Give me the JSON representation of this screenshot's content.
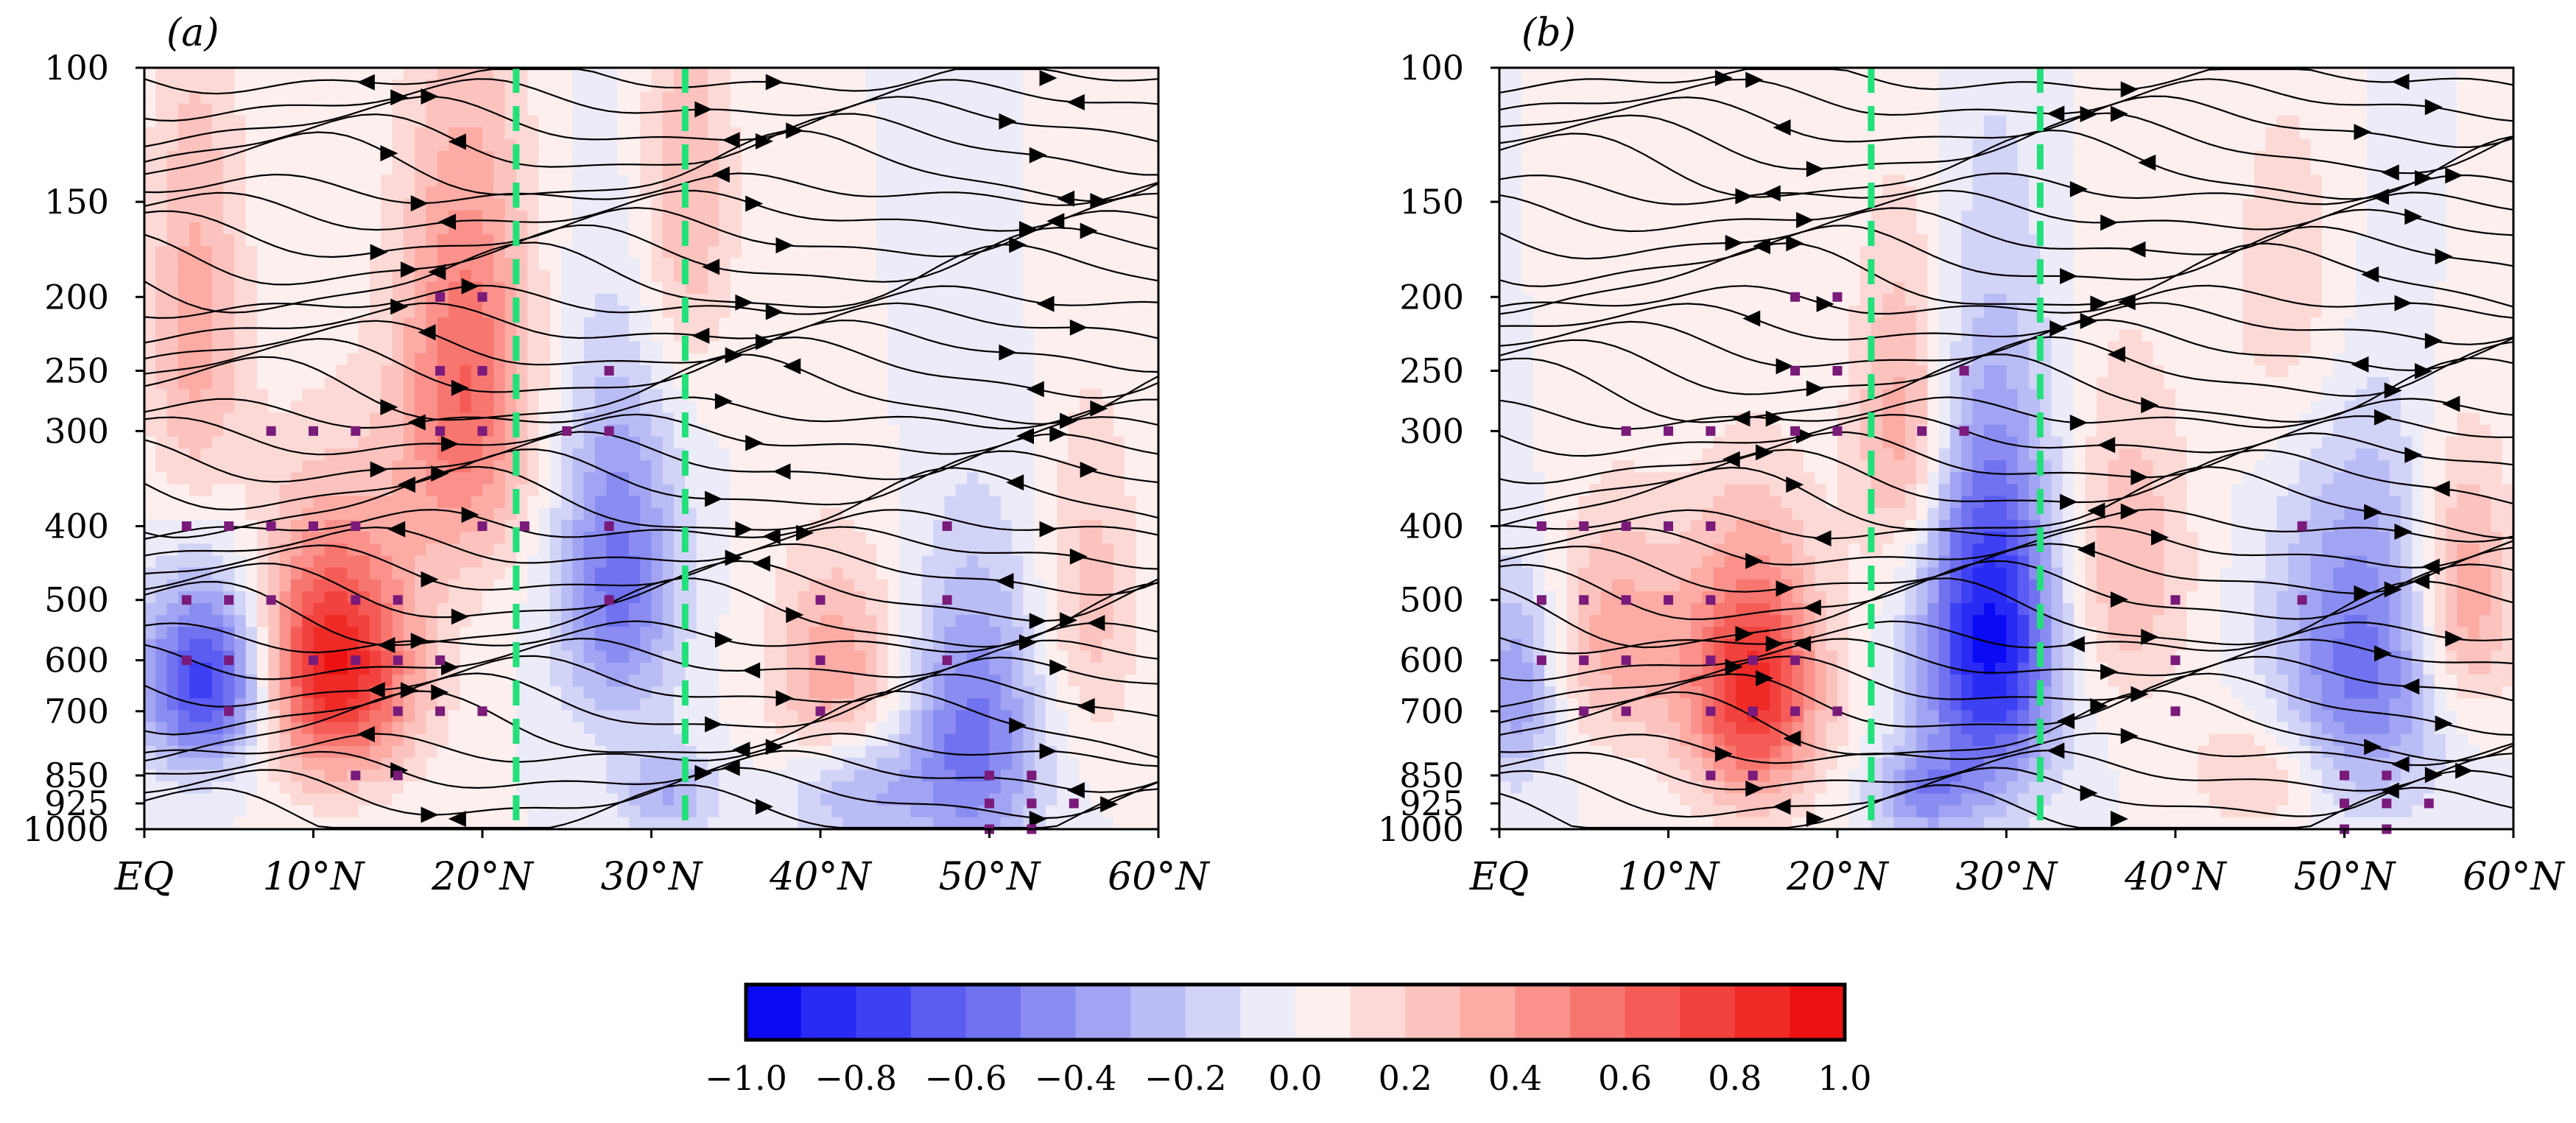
{
  "chart_data": [
    {
      "type": "heatmap",
      "panel_label": "(a)",
      "yticks": [
        "100",
        "150",
        "200",
        "250",
        "300",
        "400",
        "500",
        "600",
        "700",
        "850",
        "925",
        "1000"
      ],
      "ytick_values": [
        100,
        150,
        200,
        250,
        300,
        400,
        500,
        600,
        700,
        850,
        925,
        1000
      ],
      "xticks": [
        "EQ",
        "10°N",
        "20°N",
        "30°N",
        "40°N",
        "50°N",
        "60°N"
      ],
      "xtick_values": [
        0,
        10,
        20,
        30,
        40,
        50,
        60
      ],
      "xlim": [
        0,
        60
      ],
      "ylim": [
        1000,
        100
      ],
      "reference_lines_lat": [
        22,
        32
      ],
      "reference_line_color": "#22e07a",
      "significance_marker_color": "#7a1a7a",
      "anomalies": [
        {
          "lat": 4,
          "p": 640,
          "v": -0.85,
          "rlat": 4,
          "rp": 180
        },
        {
          "lat": 11,
          "p": 610,
          "v": 0.95,
          "rlat": 5,
          "rp": 230
        },
        {
          "lat": 19,
          "p": 260,
          "v": 0.6,
          "rlat": 4,
          "rp": 170
        },
        {
          "lat": 28,
          "p": 470,
          "v": -0.55,
          "rlat": 3.5,
          "rp": 230
        },
        {
          "lat": 41,
          "p": 640,
          "v": 0.4,
          "rlat": 4,
          "rp": 220
        },
        {
          "lat": 49,
          "p": 760,
          "v": -0.55,
          "rlat": 4,
          "rp": 320
        },
        {
          "lat": 31,
          "p": 900,
          "v": -0.3,
          "rlat": 3,
          "rp": 120
        },
        {
          "lat": 42,
          "p": 880,
          "v": -0.35,
          "rlat": 4,
          "rp": 160
        },
        {
          "lat": 56,
          "p": 500,
          "v": 0.25,
          "rlat": 3,
          "rp": 250
        },
        {
          "lat": 3,
          "p": 220,
          "v": 0.35,
          "rlat": 3,
          "rp": 150
        },
        {
          "lat": 32,
          "p": 150,
          "v": 0.3,
          "rlat": 3,
          "rp": 100
        }
      ],
      "significance_points": [
        [
          7.5,
          300
        ],
        [
          10,
          300
        ],
        [
          12.5,
          300
        ],
        [
          17.5,
          300
        ],
        [
          20,
          300
        ],
        [
          25,
          300
        ],
        [
          27.5,
          300
        ],
        [
          17.5,
          200
        ],
        [
          20,
          200
        ],
        [
          17.5,
          250
        ],
        [
          20,
          250
        ],
        [
          27.5,
          250
        ],
        [
          2.5,
          400
        ],
        [
          5,
          400
        ],
        [
          7.5,
          400
        ],
        [
          10,
          400
        ],
        [
          12.5,
          400
        ],
        [
          20,
          400
        ],
        [
          22.5,
          400
        ],
        [
          27.5,
          400
        ],
        [
          47.5,
          400
        ],
        [
          2.5,
          500
        ],
        [
          5,
          500
        ],
        [
          7.5,
          500
        ],
        [
          12.5,
          500
        ],
        [
          15,
          500
        ],
        [
          27.5,
          500
        ],
        [
          40,
          500
        ],
        [
          47.5,
          500
        ],
        [
          2.5,
          600
        ],
        [
          5,
          600
        ],
        [
          10,
          600
        ],
        [
          12.5,
          600
        ],
        [
          15,
          600
        ],
        [
          17.5,
          600
        ],
        [
          40,
          600
        ],
        [
          47.5,
          600
        ],
        [
          5,
          700
        ],
        [
          15,
          700
        ],
        [
          17.5,
          700
        ],
        [
          20,
          700
        ],
        [
          40,
          700
        ],
        [
          12.5,
          850
        ],
        [
          15,
          850
        ],
        [
          50,
          850
        ],
        [
          52.5,
          850
        ],
        [
          50,
          925
        ],
        [
          52.5,
          925
        ],
        [
          55,
          925
        ],
        [
          50,
          1000
        ],
        [
          52.5,
          1000
        ]
      ]
    },
    {
      "type": "heatmap",
      "panel_label": "(b)",
      "yticks": [
        "100",
        "150",
        "200",
        "250",
        "300",
        "400",
        "500",
        "600",
        "700",
        "850",
        "925",
        "1000"
      ],
      "ytick_values": [
        100,
        150,
        200,
        250,
        300,
        400,
        500,
        600,
        700,
        850,
        925,
        1000
      ],
      "xticks": [
        "EQ",
        "10°N",
        "20°N",
        "30°N",
        "40°N",
        "50°N",
        "60°N"
      ],
      "xtick_values": [
        0,
        10,
        20,
        30,
        40,
        50,
        60
      ],
      "xlim": [
        0,
        60
      ],
      "ylim": [
        1000,
        100
      ],
      "reference_lines_lat": [
        22,
        32
      ],
      "reference_line_color": "#22e07a",
      "significance_marker_color": "#7a1a7a",
      "anomalies": [
        {
          "lat": 15,
          "p": 650,
          "v": 0.85,
          "rlat": 4,
          "rp": 250
        },
        {
          "lat": 29,
          "p": 560,
          "v": -0.95,
          "rlat": 4,
          "rp": 300
        },
        {
          "lat": 7,
          "p": 560,
          "v": 0.35,
          "rlat": 4,
          "rp": 200
        },
        {
          "lat": 1,
          "p": 650,
          "v": -0.4,
          "rlat": 2.5,
          "rp": 200
        },
        {
          "lat": 24,
          "p": 300,
          "v": 0.4,
          "rlat": 3,
          "rp": 150
        },
        {
          "lat": 37,
          "p": 450,
          "v": 0.3,
          "rlat": 4,
          "rp": 220
        },
        {
          "lat": 51,
          "p": 600,
          "v": -0.55,
          "rlat": 5,
          "rp": 300
        },
        {
          "lat": 57,
          "p": 500,
          "v": 0.45,
          "rlat": 3,
          "rp": 200
        },
        {
          "lat": 25,
          "p": 900,
          "v": -0.4,
          "rlat": 3,
          "rp": 120
        },
        {
          "lat": 45,
          "p": 850,
          "v": 0.25,
          "rlat": 4,
          "rp": 150
        },
        {
          "lat": 47,
          "p": 200,
          "v": 0.2,
          "rlat": 4,
          "rp": 120
        }
      ],
      "significance_points": [
        [
          17.5,
          200
        ],
        [
          20,
          200
        ],
        [
          17.5,
          250
        ],
        [
          20,
          250
        ],
        [
          27.5,
          250
        ],
        [
          7.5,
          300
        ],
        [
          10,
          300
        ],
        [
          12.5,
          300
        ],
        [
          17.5,
          300
        ],
        [
          20,
          300
        ],
        [
          25,
          300
        ],
        [
          27.5,
          300
        ],
        [
          2.5,
          400
        ],
        [
          5,
          400
        ],
        [
          7.5,
          400
        ],
        [
          10,
          400
        ],
        [
          12.5,
          400
        ],
        [
          47.5,
          400
        ],
        [
          2.5,
          500
        ],
        [
          5,
          500
        ],
        [
          7.5,
          500
        ],
        [
          10,
          500
        ],
        [
          12.5,
          500
        ],
        [
          40,
          500
        ],
        [
          47.5,
          500
        ],
        [
          2.5,
          600
        ],
        [
          5,
          600
        ],
        [
          7.5,
          600
        ],
        [
          12.5,
          600
        ],
        [
          15,
          600
        ],
        [
          17.5,
          600
        ],
        [
          40,
          600
        ],
        [
          5,
          700
        ],
        [
          7.5,
          700
        ],
        [
          12.5,
          700
        ],
        [
          15,
          700
        ],
        [
          17.5,
          700
        ],
        [
          20,
          700
        ],
        [
          40,
          700
        ],
        [
          12.5,
          850
        ],
        [
          15,
          850
        ],
        [
          50,
          850
        ],
        [
          52.5,
          850
        ],
        [
          50,
          925
        ],
        [
          52.5,
          925
        ],
        [
          55,
          925
        ],
        [
          50,
          1000
        ],
        [
          52.5,
          1000
        ]
      ]
    }
  ],
  "colorbar": {
    "tick_labels": [
      "−1.0",
      "−0.8",
      "−0.6",
      "−0.4",
      "−0.2",
      "0.0",
      "0.2",
      "0.4",
      "0.6",
      "0.8",
      "1.0"
    ],
    "tick_values": [
      -1.0,
      -0.8,
      -0.6,
      -0.4,
      -0.2,
      0.0,
      0.2,
      0.4,
      0.6,
      0.8,
      1.0
    ],
    "min": -1.0,
    "max": 1.0,
    "n_colors": 20,
    "colors": [
      "#0a0af5",
      "#2a2af5",
      "#3e40f3",
      "#5a5cf2",
      "#7072f0",
      "#8a8cf1",
      "#a2a4f3",
      "#babcf5",
      "#d2d4f7",
      "#ececf9",
      "#fcefed",
      "#fcd9d6",
      "#fcc3be",
      "#fcaba5",
      "#fa918b",
      "#f87670",
      "#f55c57",
      "#f2423e",
      "#ef2a27",
      "#ec1212"
    ]
  }
}
